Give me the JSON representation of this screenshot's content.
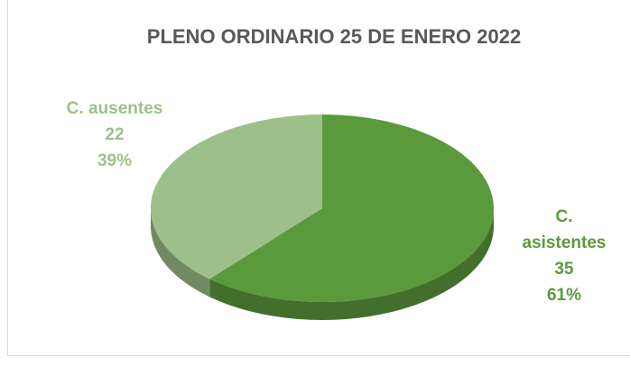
{
  "chart_data": {
    "type": "pie3d",
    "title": "PLENO ORDINARIO 25 DE ENERO 2022",
    "categories": [
      "C. asistentes",
      "C. ausentes"
    ],
    "values": [
      35,
      22
    ],
    "percent_labels": [
      "61%",
      "39%"
    ],
    "colors": [
      "#5b9a3c",
      "#9dc08b"
    ]
  }
}
